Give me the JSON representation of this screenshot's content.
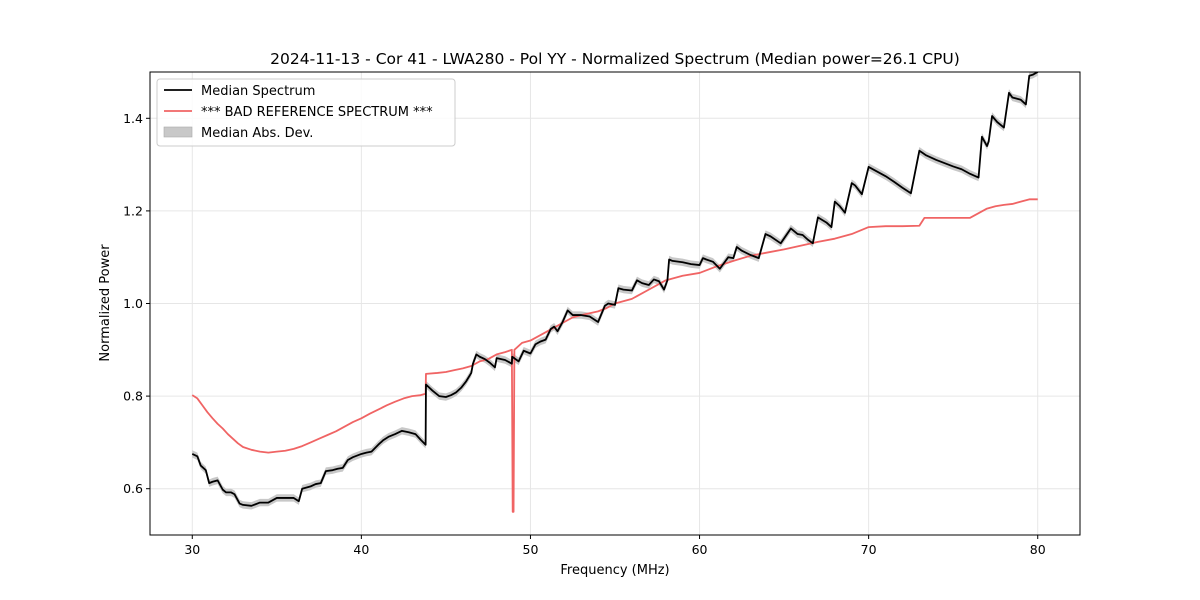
{
  "chart_data": {
    "type": "line",
    "title": "2024-11-13 - Cor 41 - LWA280 - Pol YY - Normalized Spectrum (Median power=26.1 CPU)",
    "xlabel": "Frequency (MHz)",
    "ylabel": "Normalized Power",
    "xlim": [
      27.5,
      82.5
    ],
    "ylim": [
      0.5,
      1.5
    ],
    "xticks": [
      30,
      40,
      50,
      60,
      70,
      80
    ],
    "yticks": [
      0.6,
      0.8,
      1.0,
      1.2,
      1.4
    ],
    "xtick_labels": [
      "30",
      "40",
      "50",
      "60",
      "70",
      "80"
    ],
    "ytick_labels": [
      "0.6",
      "0.8",
      "1.0",
      "1.2",
      "1.4"
    ],
    "grid": true,
    "legend_position": "top-left",
    "legend": [
      "Median Spectrum",
      "*** BAD REFERENCE SPECTRUM ***",
      "Median Abs. Dev."
    ],
    "colors": {
      "median": "#000000",
      "reference": "#f06464",
      "band": "#c8c8c8",
      "grid": "#e6e6e6"
    },
    "mad_halfwidth": 0.008,
    "series": [
      {
        "name": "Median Spectrum",
        "x": [
          30.0,
          30.3,
          30.5,
          30.8,
          31.0,
          31.2,
          31.5,
          31.8,
          32.0,
          32.3,
          32.5,
          32.8,
          33.0,
          33.5,
          34.0,
          34.5,
          35.0,
          35.5,
          36.0,
          36.3,
          36.5,
          37.0,
          37.3,
          37.6,
          37.9,
          38.3,
          38.6,
          38.9,
          39.2,
          39.5,
          40.0,
          40.3,
          40.6,
          41.0,
          41.3,
          41.6,
          42.0,
          42.4,
          42.8,
          43.2,
          43.5,
          43.8,
          43.82,
          44.2,
          44.6,
          45.0,
          45.3,
          45.6,
          45.9,
          46.2,
          46.5,
          46.6,
          46.8,
          47.0,
          47.3,
          47.6,
          47.9,
          48.0,
          48.5,
          48.9,
          48.92,
          49.3,
          49.6,
          50.0,
          50.3,
          50.6,
          50.9,
          51.2,
          51.4,
          51.6,
          51.9,
          52.2,
          52.5,
          53.0,
          53.5,
          54.0,
          54.4,
          54.6,
          55.0,
          55.2,
          55.5,
          56.0,
          56.3,
          56.6,
          57.0,
          57.3,
          57.6,
          57.9,
          58.1,
          58.2,
          58.4,
          59.0,
          59.5,
          60.0,
          60.2,
          60.4,
          60.8,
          61.2,
          61.7,
          62.0,
          62.2,
          62.5,
          63.0,
          63.5,
          63.9,
          64.2,
          64.8,
          65.4,
          65.8,
          66.1,
          66.4,
          66.7,
          67.0,
          67.5,
          67.8,
          68.0,
          68.3,
          68.6,
          69.0,
          69.2,
          69.6,
          70.0,
          70.5,
          71.0,
          71.5,
          72.0,
          72.5,
          73.0,
          73.2,
          73.4,
          74.0,
          74.5,
          75.0,
          75.5,
          76.0,
          76.5,
          76.7,
          77.0,
          77.1,
          77.3,
          77.6,
          78.0,
          78.3,
          78.5,
          79.0,
          79.3,
          79.5,
          79.7,
          80.0
        ],
        "y": [
          0.675,
          0.67,
          0.65,
          0.64,
          0.612,
          0.615,
          0.618,
          0.598,
          0.592,
          0.592,
          0.588,
          0.568,
          0.565,
          0.563,
          0.57,
          0.57,
          0.58,
          0.58,
          0.58,
          0.573,
          0.6,
          0.605,
          0.61,
          0.612,
          0.638,
          0.64,
          0.643,
          0.645,
          0.662,
          0.668,
          0.675,
          0.678,
          0.68,
          0.695,
          0.705,
          0.712,
          0.718,
          0.725,
          0.722,
          0.718,
          0.706,
          0.695,
          0.825,
          0.812,
          0.8,
          0.798,
          0.802,
          0.808,
          0.818,
          0.832,
          0.85,
          0.87,
          0.89,
          0.885,
          0.88,
          0.872,
          0.862,
          0.882,
          0.878,
          0.87,
          0.885,
          0.875,
          0.898,
          0.892,
          0.912,
          0.918,
          0.922,
          0.945,
          0.95,
          0.94,
          0.96,
          0.985,
          0.975,
          0.975,
          0.972,
          0.96,
          0.995,
          1.0,
          0.997,
          1.033,
          1.03,
          1.028,
          1.05,
          1.044,
          1.04,
          1.052,
          1.048,
          1.03,
          1.05,
          1.095,
          1.092,
          1.089,
          1.085,
          1.083,
          1.098,
          1.095,
          1.09,
          1.075,
          1.1,
          1.098,
          1.122,
          1.114,
          1.105,
          1.098,
          1.15,
          1.145,
          1.13,
          1.162,
          1.15,
          1.148,
          1.138,
          1.13,
          1.186,
          1.175,
          1.165,
          1.22,
          1.21,
          1.196,
          1.26,
          1.255,
          1.236,
          1.295,
          1.285,
          1.275,
          1.263,
          1.25,
          1.238,
          1.33,
          1.325,
          1.32,
          1.31,
          1.303,
          1.296,
          1.29,
          1.28,
          1.272,
          1.36,
          1.34,
          1.35,
          1.405,
          1.392,
          1.38,
          1.455,
          1.445,
          1.44,
          1.43,
          1.492,
          1.494,
          1.5
        ]
      },
      {
        "name": "*** BAD REFERENCE SPECTRUM ***",
        "x": [
          30.0,
          30.3,
          30.6,
          30.9,
          31.2,
          31.5,
          31.8,
          32.1,
          32.4,
          32.7,
          33.0,
          33.5,
          34.0,
          34.5,
          35.0,
          35.5,
          36.0,
          36.5,
          37.0,
          37.5,
          38.0,
          38.5,
          39.0,
          39.5,
          40.0,
          40.5,
          41.0,
          41.5,
          42.0,
          42.5,
          43.0,
          43.5,
          43.8,
          43.82,
          44.5,
          45.0,
          45.5,
          46.0,
          46.5,
          47.0,
          47.5,
          48.0,
          48.5,
          48.9,
          48.95,
          49.0,
          49.05,
          49.5,
          50.0,
          50.5,
          51.0,
          51.5,
          52.0,
          52.5,
          53.0,
          54.0,
          54.5,
          55.0,
          56.0,
          57.0,
          58.0,
          59.0,
          60.0,
          61.0,
          62.0,
          63.0,
          64.0,
          65.0,
          66.0,
          67.0,
          68.0,
          69.0,
          70.0,
          71.0,
          72.0,
          73.0,
          73.3,
          74.0,
          75.0,
          76.0,
          76.5,
          77.0,
          77.5,
          78.0,
          78.5,
          79.0,
          79.5,
          80.0
        ],
        "y": [
          0.802,
          0.795,
          0.78,
          0.765,
          0.752,
          0.74,
          0.73,
          0.718,
          0.708,
          0.698,
          0.69,
          0.684,
          0.68,
          0.678,
          0.68,
          0.682,
          0.686,
          0.692,
          0.7,
          0.708,
          0.716,
          0.724,
          0.734,
          0.744,
          0.752,
          0.762,
          0.771,
          0.78,
          0.788,
          0.795,
          0.8,
          0.802,
          0.805,
          0.848,
          0.85,
          0.852,
          0.856,
          0.86,
          0.865,
          0.875,
          0.88,
          0.89,
          0.895,
          0.9,
          0.55,
          0.55,
          0.9,
          0.915,
          0.92,
          0.93,
          0.94,
          0.95,
          0.96,
          0.97,
          0.975,
          0.983,
          0.99,
          1.0,
          1.01,
          1.03,
          1.05,
          1.06,
          1.066,
          1.08,
          1.092,
          1.103,
          1.11,
          1.117,
          1.125,
          1.133,
          1.14,
          1.15,
          1.165,
          1.167,
          1.167,
          1.168,
          1.185,
          1.185,
          1.185,
          1.185,
          1.195,
          1.205,
          1.21,
          1.213,
          1.215,
          1.22,
          1.225,
          1.225
        ]
      }
    ]
  }
}
